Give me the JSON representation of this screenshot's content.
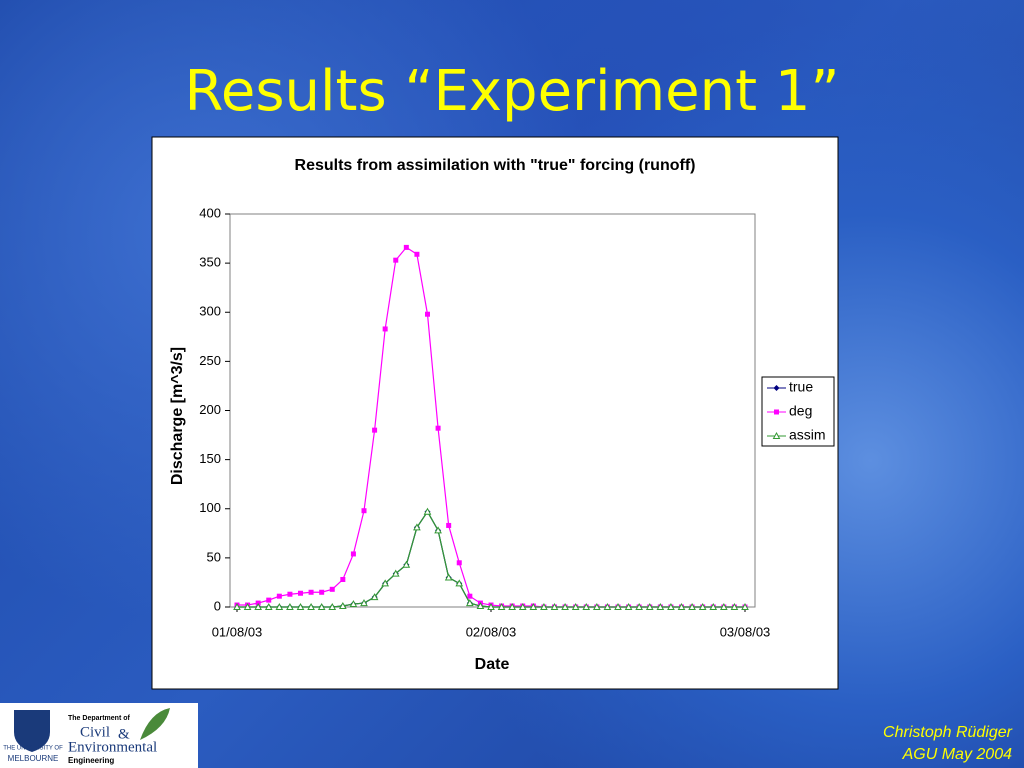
{
  "slide": {
    "title": "Results “Experiment 1”",
    "author": "Christoph Rüdiger",
    "event": "AGU May 2004"
  },
  "logo": {
    "dept": "The Department of",
    "civil": "Civil",
    "amp": "&",
    "env": "Environmental",
    "eng": "Engineering",
    "uni1": "THE UNIVERSITY OF",
    "uni2": "MELBOURNE"
  },
  "chart_data": {
    "type": "line",
    "title": "Results from assimilation with \"true\" forcing (runoff)",
    "x_label": "Date",
    "y_label": "Discharge [m^3/s]",
    "categories": [
      "01/08/03",
      null,
      null,
      null,
      null,
      null,
      null,
      null,
      null,
      null,
      null,
      null,
      null,
      null,
      null,
      null,
      null,
      null,
      null,
      null,
      null,
      null,
      null,
      null,
      "02/08/03",
      null,
      null,
      null,
      null,
      null,
      null,
      null,
      null,
      null,
      null,
      null,
      null,
      null,
      null,
      null,
      null,
      null,
      null,
      null,
      null,
      null,
      null,
      null,
      "03/08/03"
    ],
    "ylim": [
      0,
      400
    ],
    "yticks": [
      0,
      50,
      100,
      150,
      200,
      250,
      300,
      350,
      400
    ],
    "legend": "right",
    "series": [
      {
        "name": "true",
        "color": "#000080",
        "marker": "diamond",
        "values": [
          0,
          0,
          0,
          0,
          0,
          0,
          0,
          0,
          0,
          0,
          1,
          3,
          4,
          10,
          24,
          34,
          43,
          81,
          97,
          78,
          30,
          24,
          4,
          1,
          0,
          0,
          0,
          0,
          0,
          0,
          0,
          0,
          0,
          0,
          0,
          0,
          0,
          0,
          0,
          0,
          0,
          0,
          0,
          0,
          0,
          0,
          0,
          0,
          0
        ]
      },
      {
        "name": "deg",
        "color": "#ff00ff",
        "marker": "square",
        "values": [
          2,
          2,
          4,
          7,
          11,
          13,
          14,
          15,
          15,
          18,
          28,
          54,
          98,
          180,
          283,
          353,
          366,
          359,
          298,
          182,
          83,
          45,
          11,
          4,
          2,
          1,
          1,
          1,
          1,
          0,
          0,
          0,
          0,
          0,
          0,
          0,
          0,
          0,
          0,
          0,
          0,
          0,
          0,
          0,
          0,
          0,
          0,
          0,
          0
        ]
      },
      {
        "name": "assim",
        "color": "#339933",
        "marker": "triangle",
        "values": [
          0,
          0,
          0,
          0,
          0,
          0,
          0,
          0,
          0,
          0,
          1,
          3,
          4,
          10,
          24,
          34,
          43,
          81,
          97,
          78,
          30,
          24,
          4,
          1,
          0,
          0,
          0,
          0,
          0,
          0,
          0,
          0,
          0,
          0,
          0,
          0,
          0,
          0,
          0,
          0,
          0,
          0,
          0,
          0,
          0,
          0,
          0,
          0,
          0
        ]
      }
    ]
  }
}
